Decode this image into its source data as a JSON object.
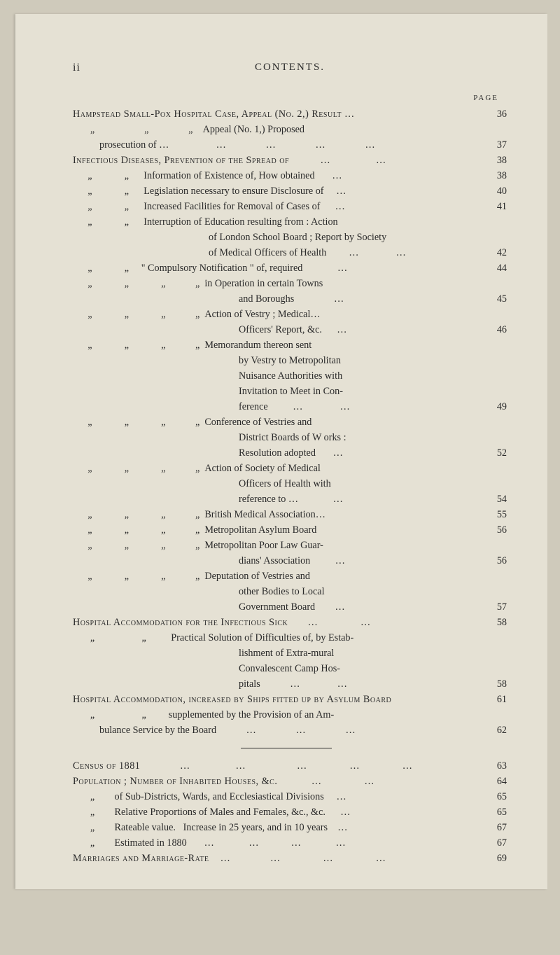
{
  "pageNumber": "ii",
  "headerTitle": "CONTENTS.",
  "pageLabel": "PAGE",
  "rows": [
    {
      "text": "Hampstead Small-Pox Hospital Case, Appeal (No. 2,) Result …",
      "page": "36",
      "cls": "content",
      "sc": true
    },
    {
      "text": "       „                    „                „    Appeal (No. 1,) Proposed",
      "page": "",
      "cls": "content"
    },
    {
      "text": "prosecution of …                   …                …                …                …",
      "page": "37",
      "cls": "content indent1"
    },
    {
      "text": "Infectious Diseases, Prevention of the Spread of           …                …",
      "page": "38",
      "cls": "content",
      "sc": true
    },
    {
      "text": "      „             „      Information of Existence of, How obtained       …",
      "page": "38",
      "cls": "content"
    },
    {
      "text": "      „             „      Legislation necessary to ensure Disclosure of     …",
      "page": "40",
      "cls": "content"
    },
    {
      "text": "      „             „      Increased Facilities for Removal of Cases of      …",
      "page": "41",
      "cls": "content"
    },
    {
      "text": "      „             „      Interruption of Education resulting from : Action",
      "page": "",
      "cls": "content"
    },
    {
      "text": "of London School Board ; Report by Society",
      "page": "",
      "cls": "content indent3"
    },
    {
      "text": "of Medical Officers of Health         …               …",
      "page": "42",
      "cls": "content indent3"
    },
    {
      "text": "      „             „     \" Compulsory Notification \" of, required              …",
      "page": "44",
      "cls": "content"
    },
    {
      "text": "      „             „             „            „  in Operation in certain Towns",
      "page": "",
      "cls": "content"
    },
    {
      "text": "and Boroughs                …",
      "page": "45",
      "cls": "content hang3"
    },
    {
      "text": "      „             „             „            „  Action of Vestry ; Medical…",
      "page": "",
      "cls": "content"
    },
    {
      "text": "Officers' Report, &c.      …",
      "page": "46",
      "cls": "content hang3"
    },
    {
      "text": "      „             „             „            „  Memorandum thereon sent",
      "page": "",
      "cls": "content"
    },
    {
      "text": "by Vestry to Metropolitan",
      "page": "",
      "cls": "content hang3"
    },
    {
      "text": "Nuisance Authorities with",
      "page": "",
      "cls": "content hang3"
    },
    {
      "text": "Invitation to Meet in Con-",
      "page": "",
      "cls": "content hang3"
    },
    {
      "text": "ference          …               …",
      "page": "49",
      "cls": "content hang3"
    },
    {
      "text": "      „             „             „            „  Conference of Vestries and",
      "page": "",
      "cls": "content"
    },
    {
      "text": "District Boards of W orks :",
      "page": "",
      "cls": "content hang3"
    },
    {
      "text": "Resolution adopted       …",
      "page": "52",
      "cls": "content hang3"
    },
    {
      "text": "      „             „             „            „  Action of Society of Medical",
      "page": "",
      "cls": "content"
    },
    {
      "text": "Officers of Health with",
      "page": "",
      "cls": "content hang3"
    },
    {
      "text": "reference to …              …",
      "page": "54",
      "cls": "content hang3"
    },
    {
      "text": "      „             „             „            „  British Medical Association…",
      "page": "55",
      "cls": "content"
    },
    {
      "text": "      „             „             „            „  Metropolitan Asylum Board",
      "page": "56",
      "cls": "content"
    },
    {
      "text": "      „             „             „            „  Metropolitan Poor Law Guar-",
      "page": "",
      "cls": "content"
    },
    {
      "text": "dians' Association          …",
      "page": "56",
      "cls": "content hang3"
    },
    {
      "text": "      „             „             „            „  Deputation of Vestries and",
      "page": "",
      "cls": "content"
    },
    {
      "text": "other Bodies to Local",
      "page": "",
      "cls": "content hang3"
    },
    {
      "text": "Government Board        …",
      "page": "57",
      "cls": "content hang3"
    },
    {
      "text": "Hospital Accommodation for the Infectious Sick       …               …",
      "page": "58",
      "cls": "content",
      "sc": true
    },
    {
      "text": "       „                   „          Practical Solution of Difficulties of, by Estab-",
      "page": "",
      "cls": "content"
    },
    {
      "text": "lishment of Extra-mural",
      "page": "",
      "cls": "content hang3"
    },
    {
      "text": "Convalescent Camp Hos-",
      "page": "",
      "cls": "content hang3"
    },
    {
      "text": "pitals            …               …",
      "page": "58",
      "cls": "content hang3"
    },
    {
      "text": "Hospital Accommodation, increased by Ships fitted up by Asylum Board",
      "page": "61",
      "cls": "content",
      "sc": true
    },
    {
      "text": "       „                   „         supplemented by the Provision of an Am-",
      "page": "",
      "cls": "content"
    },
    {
      "text": "bulance Service by the Board            …                …                …",
      "page": "62",
      "cls": "content indent1"
    },
    {
      "text": "HR",
      "page": "",
      "cls": ""
    },
    {
      "text": "Census of 1881              …                …                  …               …               …",
      "page": "63",
      "cls": "content",
      "sc": true
    },
    {
      "text": "Population ; Number of Inhabited Houses, &c.            …               …",
      "page": "64",
      "cls": "content",
      "sc": true
    },
    {
      "text": "       „        of Sub-Districts, Wards, and Ecclesiastical Divisions     …",
      "page": "65",
      "cls": "content"
    },
    {
      "text": "       „        Relative Proportions of Males and Females, &c., &c.      …",
      "page": "65",
      "cls": "content"
    },
    {
      "text": "       „        Rateable value.   Increase in 25 years, and in 10 years    …",
      "page": "67",
      "cls": "content"
    },
    {
      "text": "       „        Estimated in 1880       …              …             …              …",
      "page": "67",
      "cls": "content"
    },
    {
      "text": "Marriages and Marriage-Rate    …              …               …               …",
      "page": "69",
      "cls": "content",
      "sc": true
    }
  ]
}
